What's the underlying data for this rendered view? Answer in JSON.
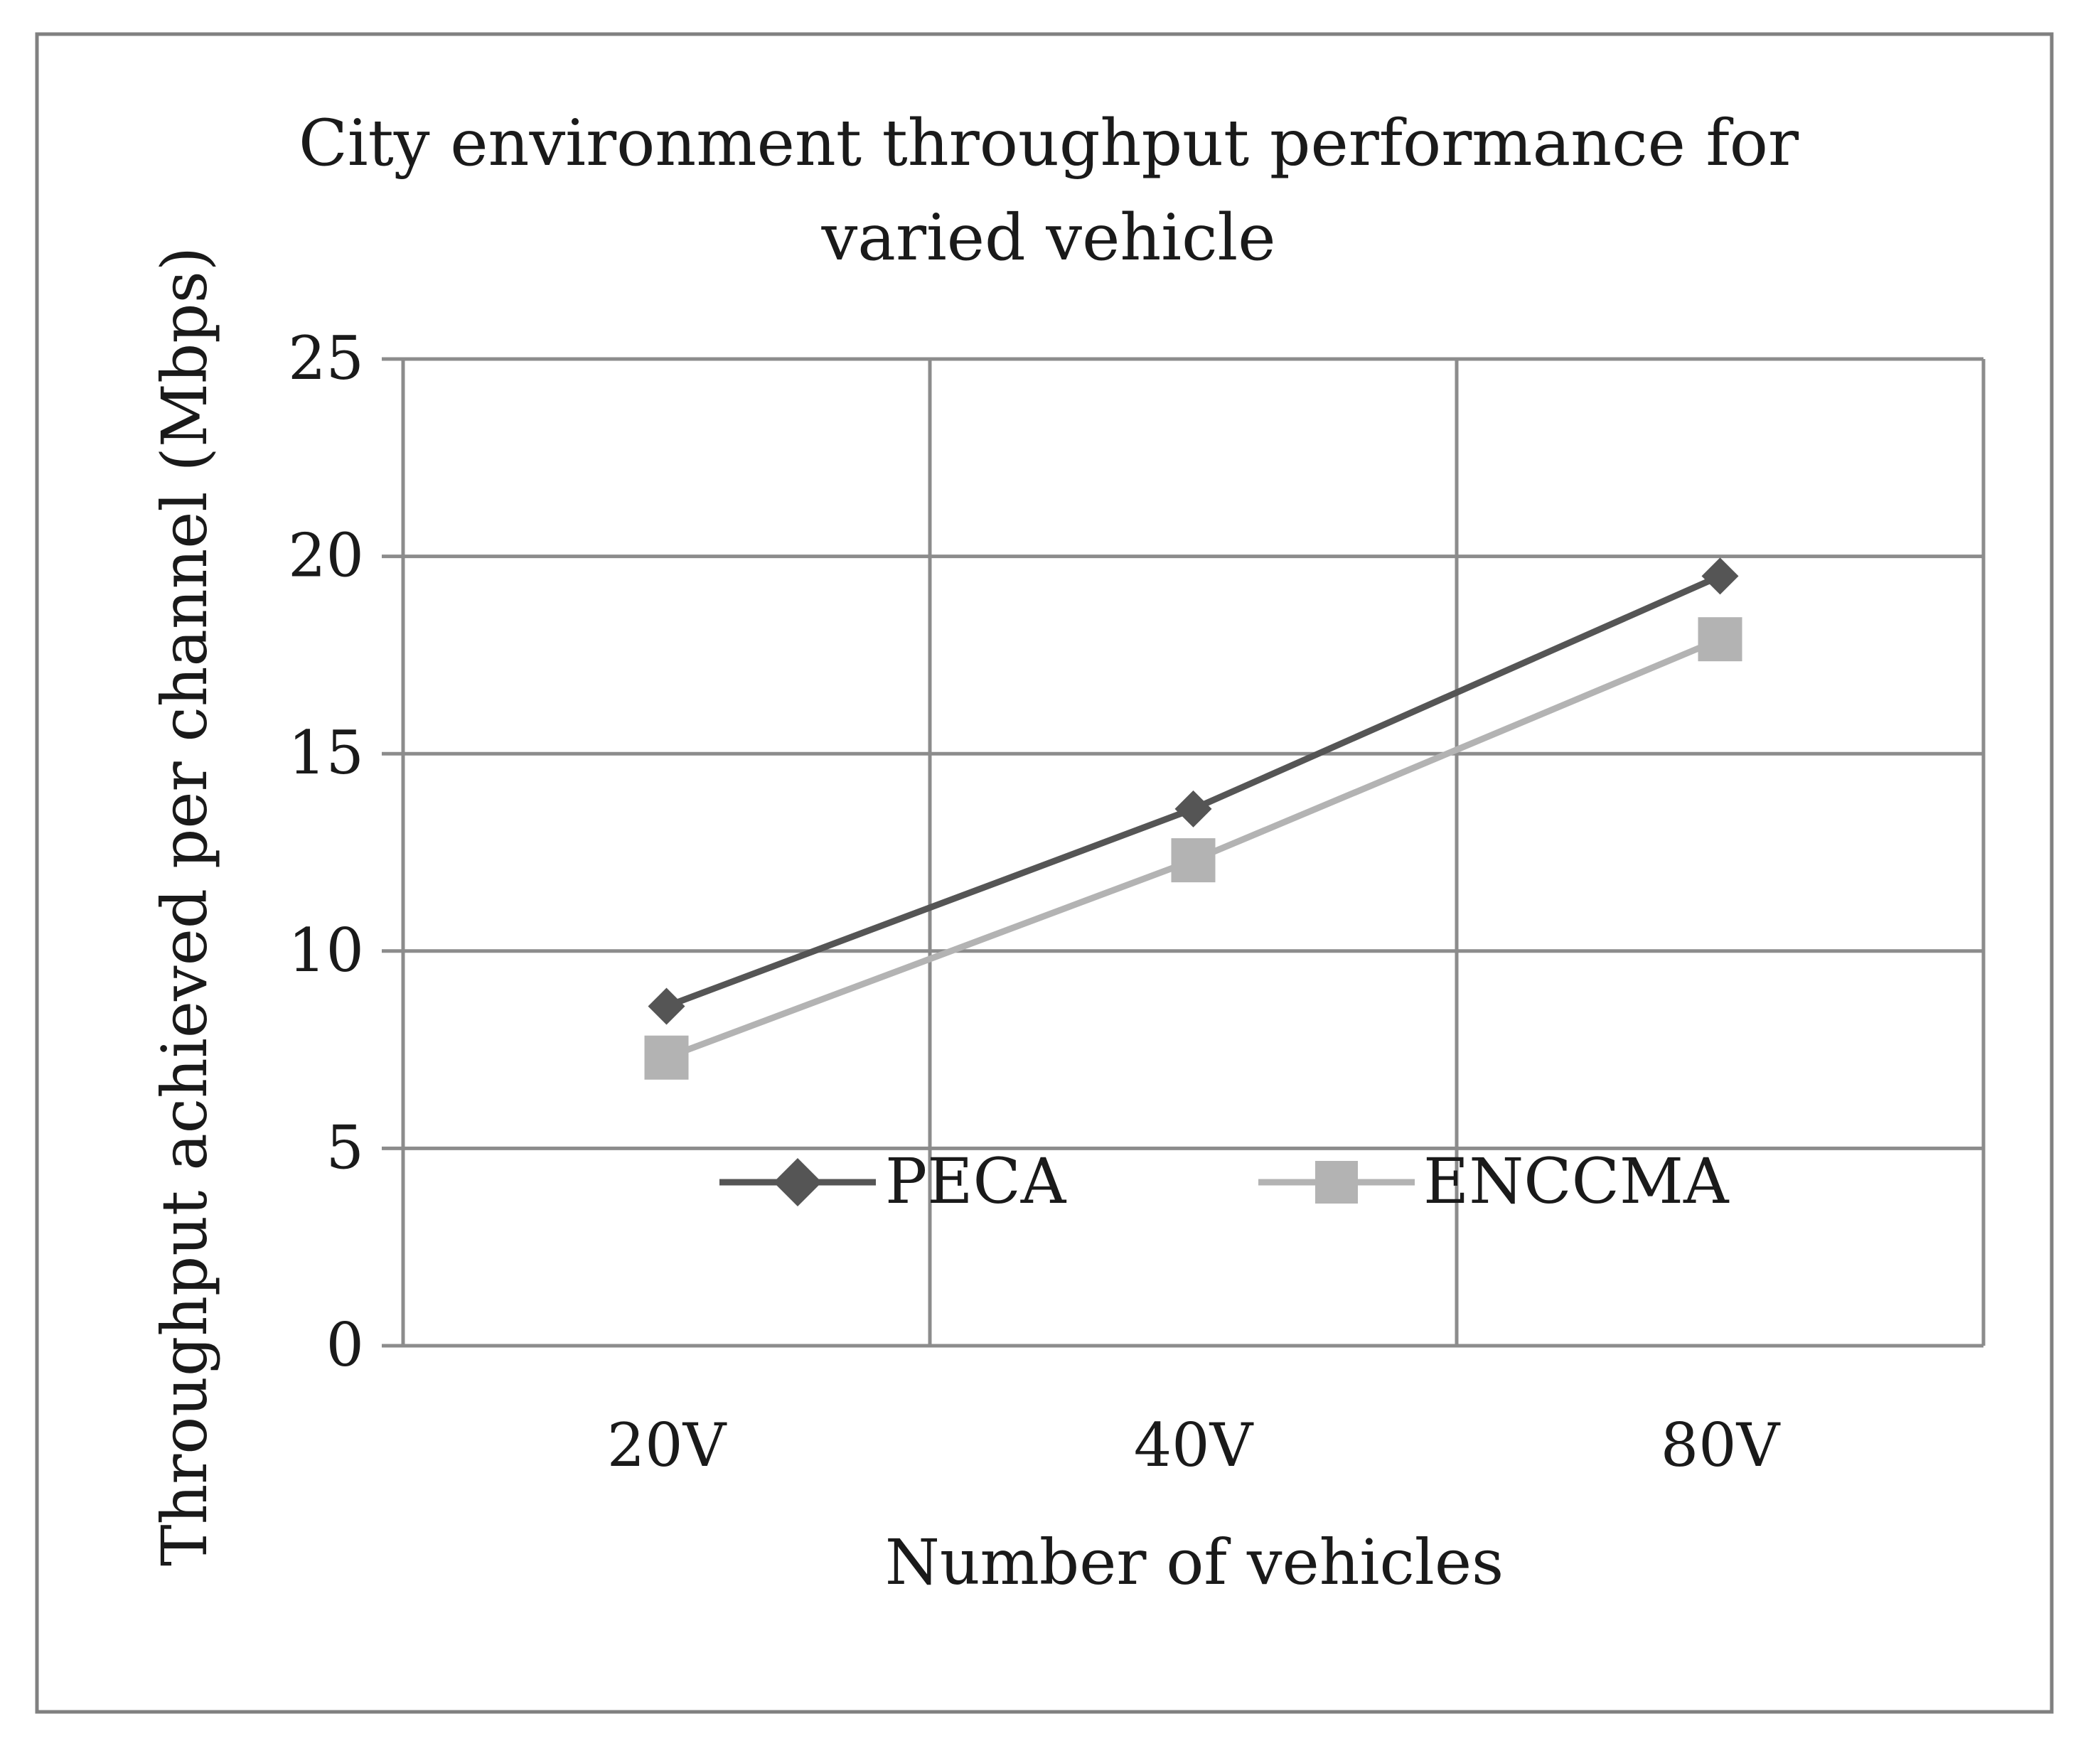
{
  "chart_data": {
    "type": "line",
    "title_lines": [
      "City environment throughput performance for",
      "varied vehicle"
    ],
    "xlabel": "Number of vehicles",
    "ylabel": "Throughput achieved per channel (Mbps)",
    "categories": [
      "20V",
      "40V",
      "80V"
    ],
    "ylim": [
      0,
      25
    ],
    "yticks": [
      "0",
      "5",
      "10",
      "15",
      "20",
      "25"
    ],
    "grid": true,
    "legend_position": "inside-bottom",
    "series": [
      {
        "name": "PECA",
        "values": [
          8.6,
          13.6,
          19.5
        ],
        "color": "#555555",
        "marker": "diamond"
      },
      {
        "name": "ENCCMA",
        "values": [
          7.3,
          12.3,
          17.9
        ],
        "color": "#b3b3b3",
        "marker": "square"
      }
    ]
  },
  "colors": {
    "grid": "#8c8c8c",
    "frame": "#808080"
  }
}
